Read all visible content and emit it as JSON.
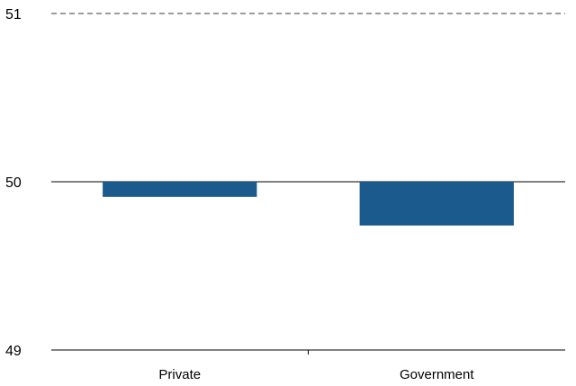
{
  "chart_data": {
    "type": "bar",
    "categories": [
      "Private",
      "Government"
    ],
    "values": [
      49.91,
      49.74
    ],
    "baseline": 50,
    "ylim": [
      49,
      51
    ],
    "yticks": [
      "49",
      "50",
      "51"
    ],
    "title": "",
    "xlabel": "",
    "ylabel": "",
    "grid": "dashed horizontal",
    "bar_color": "#1b5a8c"
  }
}
